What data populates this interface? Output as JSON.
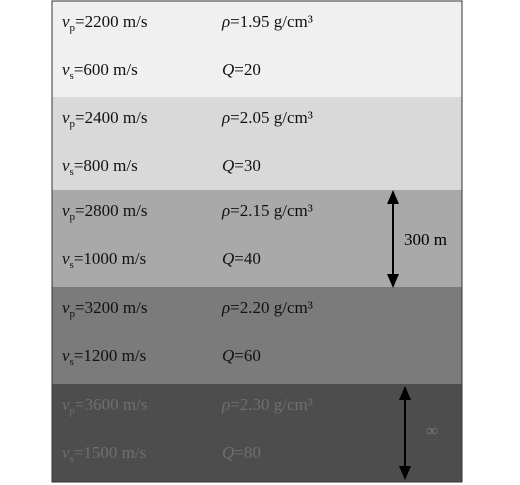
{
  "symbols": {
    "v": "v",
    "p": "p",
    "s": "s",
    "rho": "ρ",
    "Q": "Q"
  },
  "layers": [
    {
      "vp": "=2200 m/s",
      "vs": "=600 m/s",
      "rho": "=1.95 g/cm³",
      "Q": "=20"
    },
    {
      "vp": "=2400 m/s",
      "vs": "=800 m/s",
      "rho": "=2.05 g/cm³",
      "Q": "=30"
    },
    {
      "vp": "=2800 m/s",
      "vs": "=1000 m/s",
      "rho": "=2.15 g/cm³",
      "Q": "=40"
    },
    {
      "vp": "=3200 m/s",
      "vs": "=1200 m/s",
      "rho": "=2.20 g/cm³",
      "Q": "=60"
    },
    {
      "vp": "=3600 m/s",
      "vs": "=1500 m/s",
      "rho": "=2.30 g/cm³",
      "Q": "=80"
    }
  ],
  "annotations": {
    "thickness": "300 m",
    "infinite": "∞"
  }
}
